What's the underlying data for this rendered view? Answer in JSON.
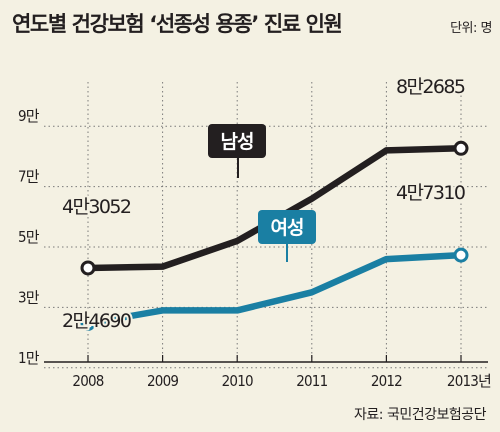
{
  "title": "연도별 건강보험 ‘선종성 용종’ 진료 인원",
  "unit": "단위: 명",
  "source": "자료: 국민건강보험공단",
  "chart_data": {
    "type": "line",
    "x": [
      "2008",
      "2009",
      "2010",
      "2011",
      "2012",
      "2013년"
    ],
    "y_ticks": [
      "1만",
      "3만",
      "5만",
      "7만",
      "9만"
    ],
    "ylim": [
      0,
      100000
    ],
    "series": [
      {
        "name": "남성",
        "color": "#231f20",
        "values": [
          43052,
          43500,
          52000,
          66000,
          82000,
          82685
        ],
        "labels": [
          {
            "index": 0,
            "text": "4만3052"
          },
          {
            "index": 5,
            "text": "8만2685"
          }
        ]
      },
      {
        "name": "여성",
        "color": "#1a7fa3",
        "values": [
          24690,
          29000,
          29000,
          35000,
          46000,
          47310
        ],
        "labels": [
          {
            "index": 0,
            "text": "2만4690"
          },
          {
            "index": 5,
            "text": "4만7310"
          }
        ]
      }
    ],
    "grid": true
  }
}
